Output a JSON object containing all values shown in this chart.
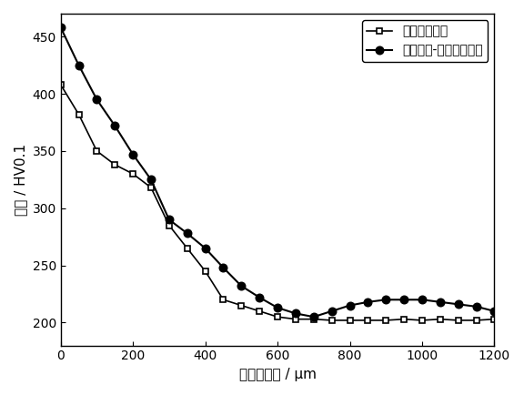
{
  "series1_label": "单纯超声滚压",
  "series2_label": "电致塑性-超声滚压耦合",
  "series1_x": [
    0,
    50,
    100,
    150,
    200,
    250,
    300,
    350,
    400,
    450,
    500,
    550,
    600,
    650,
    700,
    750,
    800,
    850,
    900,
    950,
    1000,
    1050,
    1100,
    1150,
    1200
  ],
  "series1_y": [
    408,
    382,
    350,
    338,
    330,
    318,
    285,
    265,
    245,
    220,
    215,
    210,
    205,
    203,
    203,
    202,
    202,
    202,
    202,
    203,
    202,
    203,
    202,
    202,
    203
  ],
  "series2_x": [
    0,
    50,
    100,
    150,
    200,
    250,
    300,
    350,
    400,
    450,
    500,
    550,
    600,
    650,
    700,
    750,
    800,
    850,
    900,
    950,
    1000,
    1050,
    1100,
    1150,
    1200
  ],
  "series2_y": [
    458,
    425,
    395,
    372,
    347,
    325,
    290,
    278,
    265,
    248,
    232,
    222,
    213,
    208,
    205,
    210,
    215,
    218,
    220,
    220,
    220,
    218,
    216,
    214,
    210
  ],
  "xlabel": "距表面深度 / μm",
  "ylabel": "硬度 / HV0.1",
  "xlim": [
    0,
    1200
  ],
  "ylim": [
    180,
    470
  ],
  "xticks": [
    0,
    200,
    400,
    600,
    800,
    1000,
    1200
  ],
  "yticks": [
    200,
    250,
    300,
    350,
    400,
    450
  ],
  "line_color": "#000000",
  "bg_color": "#ffffff",
  "legend_loc": "upper right"
}
